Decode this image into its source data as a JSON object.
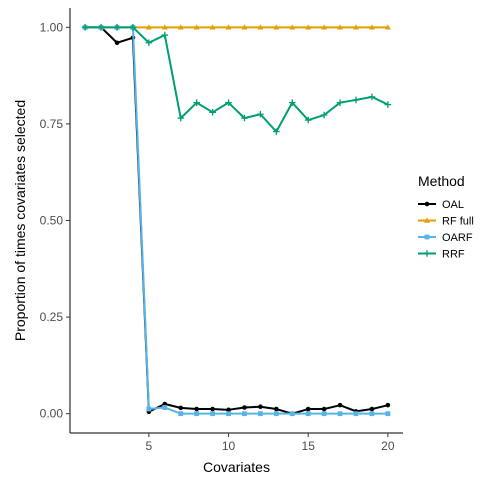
{
  "chart_data": {
    "type": "line",
    "xlabel": "Covariates",
    "ylabel": "Proportion of times covariates selected",
    "xlim": [
      0.05,
      20.95
    ],
    "ylim": [
      -0.05,
      1.05
    ],
    "x_ticks": [
      5,
      10,
      15,
      20
    ],
    "y_ticks": [
      0.0,
      0.25,
      0.5,
      0.75,
      1.0
    ],
    "y_tick_labels": [
      "0.00",
      "0.25",
      "0.50",
      "0.75",
      "1.00"
    ],
    "grid": false,
    "legend": {
      "title": "Method",
      "placement": "right"
    },
    "x": [
      1,
      2,
      3,
      4,
      5,
      6,
      7,
      8,
      9,
      10,
      11,
      12,
      13,
      14,
      15,
      16,
      17,
      18,
      19,
      20
    ],
    "series": [
      {
        "name": "OAL",
        "color": "#000000",
        "marker": "circle",
        "values": [
          1.0,
          1.0,
          0.96,
          0.973,
          0.005,
          0.025,
          0.015,
          0.012,
          0.012,
          0.01,
          0.016,
          0.018,
          0.012,
          0.0,
          0.012,
          0.012,
          0.022,
          0.006,
          0.012,
          0.022
        ]
      },
      {
        "name": "RF full",
        "color": "#E69F00",
        "marker": "triangle",
        "values": [
          1,
          1,
          1,
          1,
          1,
          1,
          1,
          1,
          1,
          1,
          1,
          1,
          1,
          1,
          1,
          1,
          1,
          1,
          1,
          1
        ]
      },
      {
        "name": "OARF",
        "color": "#56B4E9",
        "marker": "square",
        "values": [
          1.0,
          1.0,
          1.0,
          1.0,
          0.012,
          0.016,
          0.0,
          0.0,
          0.0,
          0.0,
          0.0,
          0.0,
          0.0,
          0.0,
          0.0,
          0.0,
          0.0,
          0.0,
          0.0,
          0.0
        ]
      },
      {
        "name": "RRF",
        "color": "#009E73",
        "marker": "plus",
        "values": [
          1.0,
          1.0,
          1.0,
          1.0,
          0.96,
          0.98,
          0.765,
          0.805,
          0.78,
          0.805,
          0.765,
          0.775,
          0.73,
          0.805,
          0.76,
          0.773,
          0.805,
          0.812,
          0.82,
          0.8
        ]
      }
    ]
  }
}
